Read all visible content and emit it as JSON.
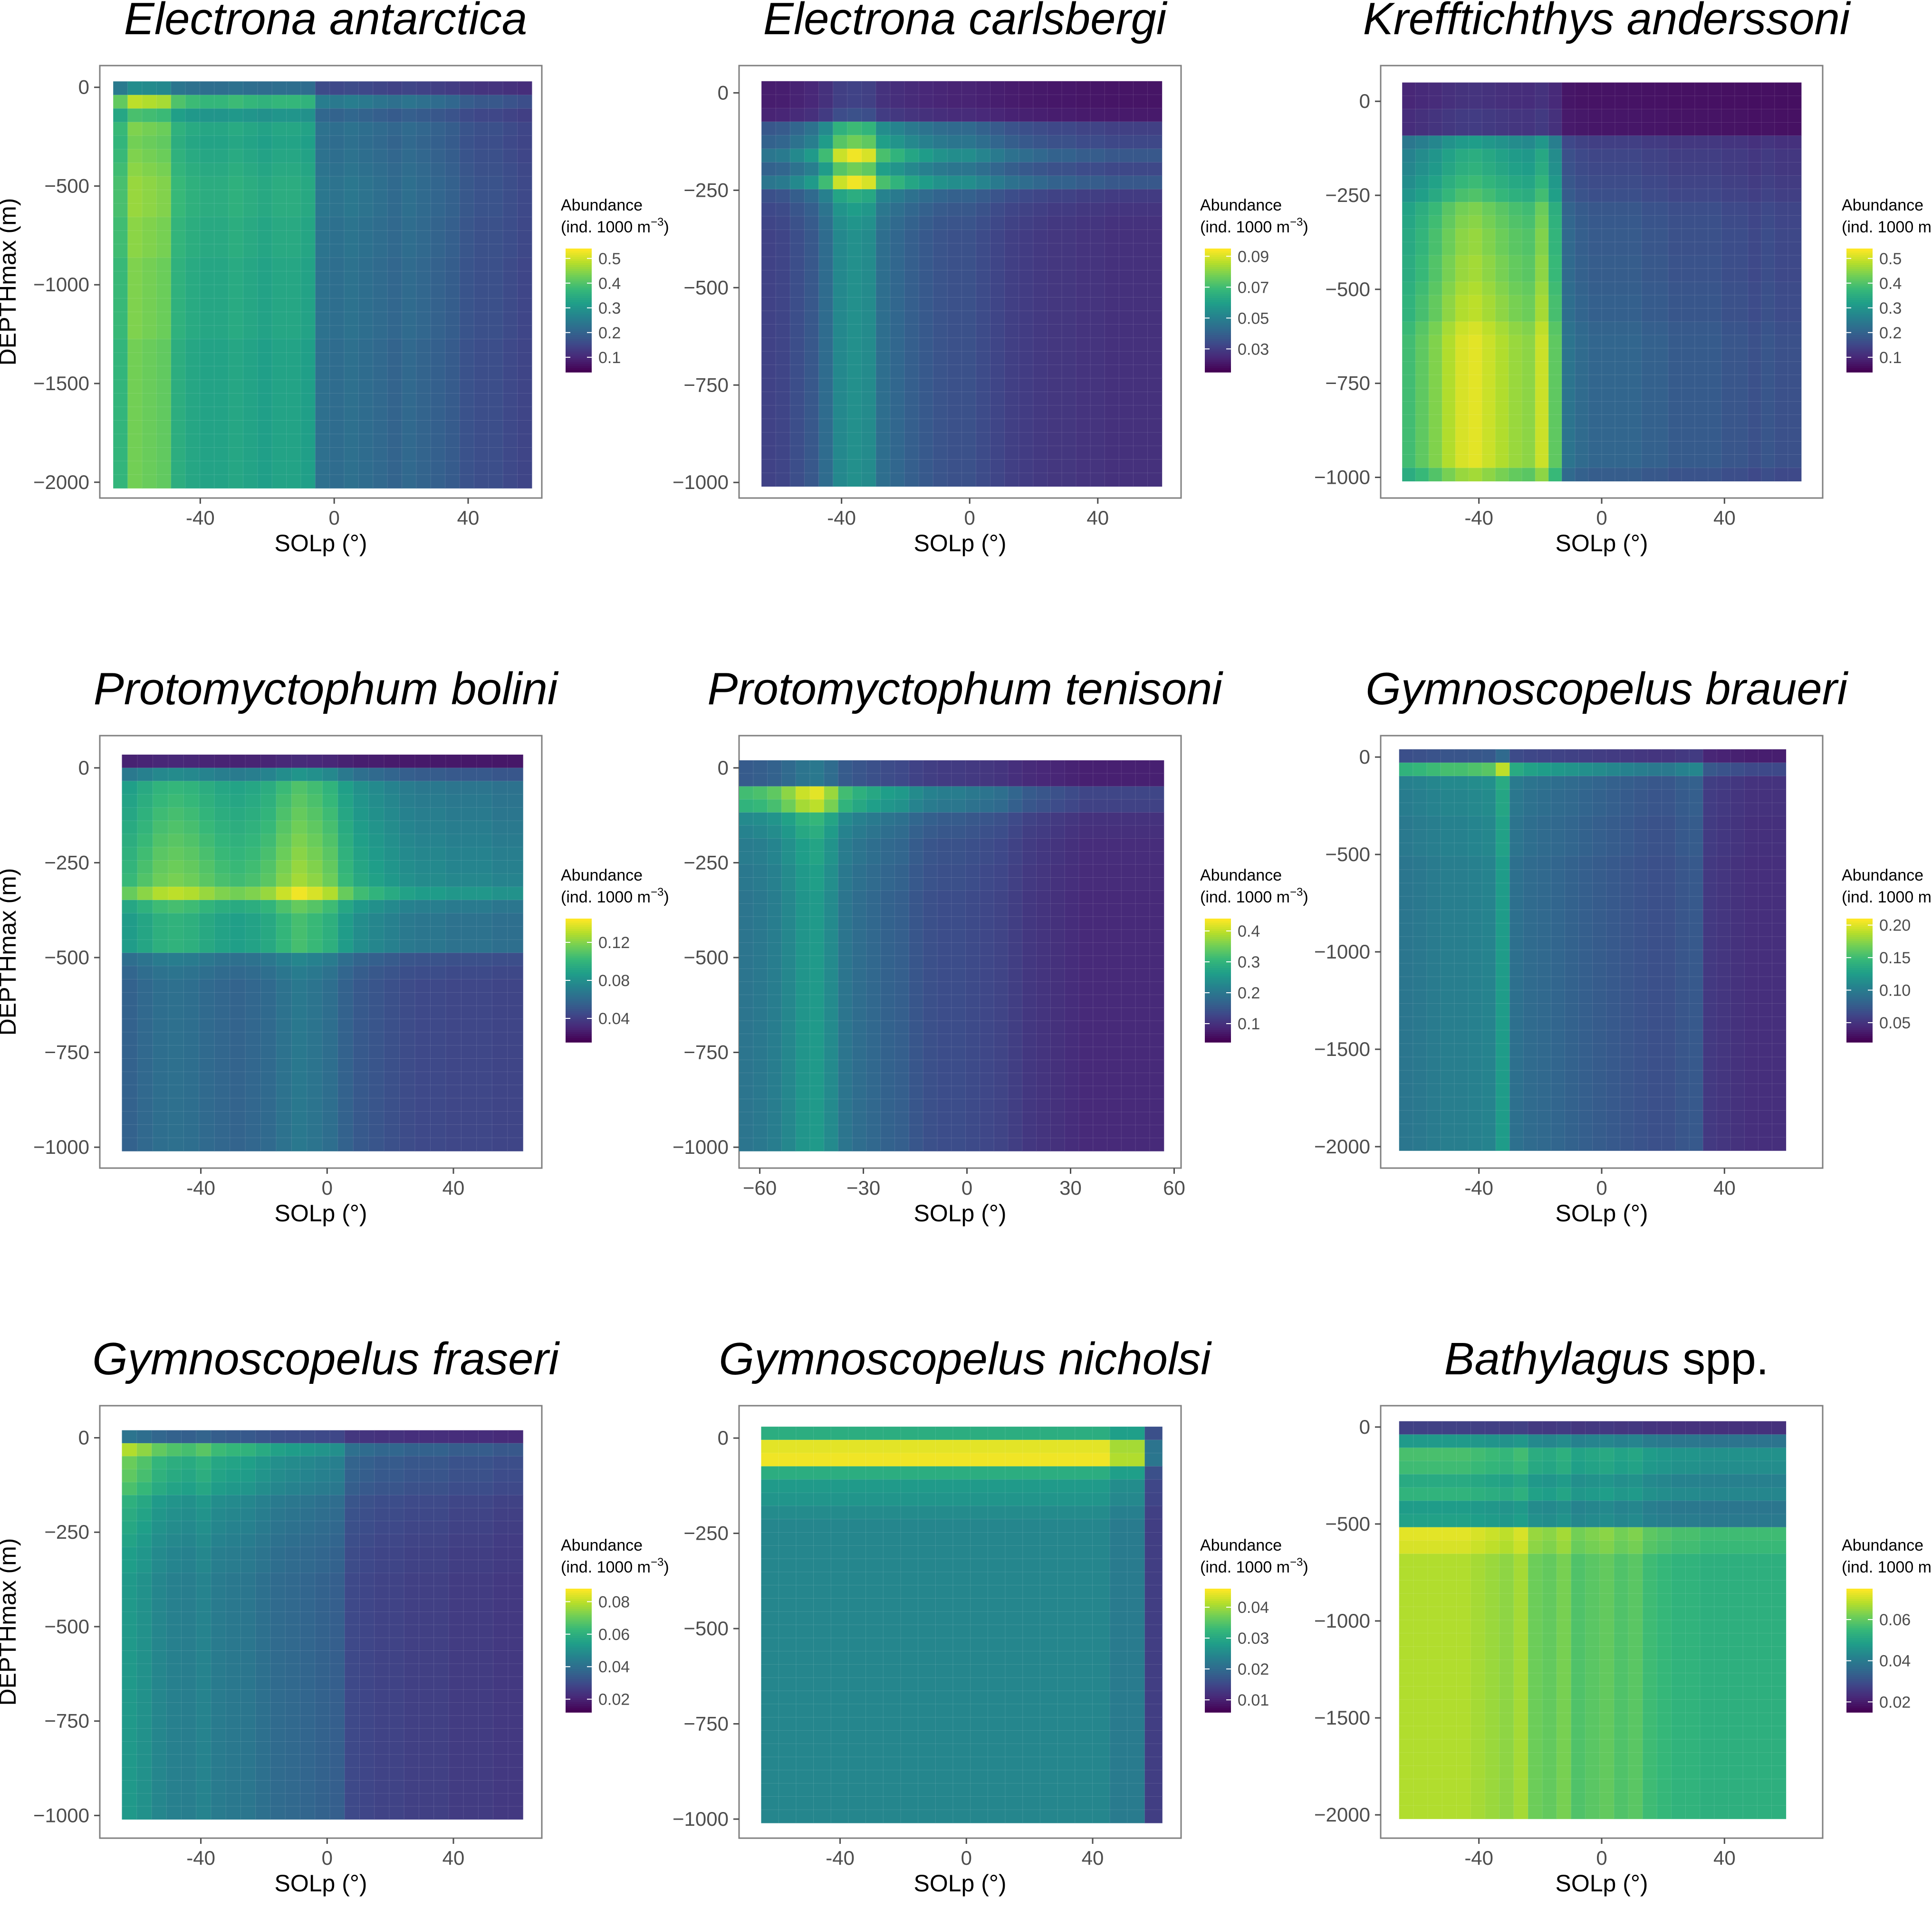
{
  "figure": {
    "background": "#ffffff",
    "panel_border": "#7f7f7f",
    "text_color": "#000000",
    "tick_color": "#4d4d4d"
  },
  "colormap": [
    "#440154",
    "#482878",
    "#3e4989",
    "#31688e",
    "#26828e",
    "#1f9e89",
    "#35b779",
    "#6ece58",
    "#b5de2b",
    "#fde725"
  ],
  "chart_data": [
    {
      "type": "heatmap",
      "title": "Electrona antarctica",
      "title_italic": "Electrona antarctica",
      "title_suffix": "",
      "xlabel": "SOLp (°)",
      "ylabel": "DEPTHmax (m)",
      "show_ylabel": true,
      "xlim": [
        -70,
        62
      ],
      "ylim": [
        -2080,
        110
      ],
      "xticks": [
        -40,
        0,
        40
      ],
      "xtick_labels": [
        "-40",
        "0",
        "40"
      ],
      "yticks": [
        0,
        -500,
        -1000,
        -1500,
        -2000
      ],
      "ytick_labels": [
        "0",
        "−500",
        "−1000",
        "−1500",
        "−2000"
      ],
      "grid_x_range": [
        -66,
        59
      ],
      "grid_y_range": [
        -2030,
        30
      ],
      "legend": {
        "title": "Abundance",
        "units_prefix": "(ind. 1000 m",
        "units_sup": "−3",
        "units_suffix": ")",
        "ticks": [
          0.1,
          0.2,
          0.3,
          0.4,
          0.5
        ],
        "tick_labels": [
          "0.1",
          "0.2",
          "0.3",
          "0.4",
          "0.5"
        ],
        "range": [
          0.04,
          0.54
        ]
      },
      "depth_profile": [
        0.5,
        0.92,
        0.72,
        0.82,
        0.8,
        0.82,
        0.84,
        0.86,
        0.86,
        0.86,
        0.84,
        0.84,
        0.84,
        0.82,
        0.82,
        0.82,
        0.82,
        0.82,
        0.82,
        0.8,
        0.8,
        0.8,
        0.8,
        0.8,
        0.8,
        0.8,
        0.8,
        0.8,
        0.8,
        0.8
      ],
      "lat_profile": [
        0.82,
        0.98,
        0.96,
        0.94,
        0.78,
        0.74,
        0.72,
        0.72,
        0.74,
        0.72,
        0.7,
        0.72,
        0.72,
        0.7,
        0.46,
        0.44,
        0.46,
        0.44,
        0.42,
        0.4,
        0.42,
        0.4,
        0.38,
        0.36,
        0.32,
        0.3,
        0.3,
        0.28,
        0.26
      ],
      "min_fraction": 0.0,
      "max_fraction": 1.0
    },
    {
      "type": "heatmap",
      "title": "Electrona carlsbergi",
      "title_italic": "Electrona carlsbergi",
      "title_suffix": "",
      "xlabel": "SOLp (°)",
      "ylabel": "DEPTHmax (m)",
      "show_ylabel": false,
      "xlim": [
        -72,
        66
      ],
      "ylim": [
        -1040,
        70
      ],
      "xticks": [
        -40,
        0,
        40
      ],
      "xtick_labels": [
        "-40",
        "0",
        "40"
      ],
      "yticks": [
        0,
        -250,
        -500,
        -750,
        -1000
      ],
      "ytick_labels": [
        "0",
        "−250",
        "−500",
        "−750",
        "−1000"
      ],
      "grid_x_range": [
        -65,
        60
      ],
      "grid_y_range": [
        -1010,
        30
      ],
      "legend": {
        "title": "Abundance",
        "units_prefix": "(ind. 1000 m",
        "units_sup": "−3",
        "units_suffix": ")",
        "ticks": [
          0.03,
          0.05,
          0.07,
          0.09
        ],
        "tick_labels": [
          "0.03",
          "0.05",
          "0.07",
          "0.09"
        ],
        "range": [
          0.015,
          0.095
        ]
      },
      "depth_profile": [
        0.2,
        0.2,
        0.25,
        0.68,
        0.78,
        0.98,
        0.78,
        0.98,
        0.62,
        0.55,
        0.52,
        0.5,
        0.5,
        0.5,
        0.5,
        0.5,
        0.5,
        0.5,
        0.5,
        0.5,
        0.5,
        0.5,
        0.5,
        0.5,
        0.5,
        0.5,
        0.5,
        0.5,
        0.5,
        0.5
      ],
      "lat_profile": [
        0.4,
        0.42,
        0.48,
        0.55,
        0.7,
        0.94,
        1.0,
        0.96,
        0.72,
        0.66,
        0.6,
        0.56,
        0.52,
        0.5,
        0.5,
        0.46,
        0.42,
        0.38,
        0.36,
        0.34,
        0.32,
        0.32,
        0.3,
        0.3,
        0.28,
        0.28,
        0.28,
        0.28
      ],
      "min_fraction": 0.0,
      "max_fraction": 1.0
    },
    {
      "type": "heatmap",
      "title": "Krefftichthys anderssoni",
      "title_italic": "Krefftichthys anderssoni",
      "title_suffix": "",
      "xlabel": "SOLp (°)",
      "ylabel": "DEPTHmax (m)",
      "show_ylabel": false,
      "xlim": [
        -72,
        72
      ],
      "ylim": [
        -1055,
        95
      ],
      "xticks": [
        -40,
        0,
        40
      ],
      "xtick_labels": [
        "-40",
        "0",
        "40"
      ],
      "yticks": [
        0,
        -250,
        -500,
        -750,
        -1000
      ],
      "ytick_labels": [
        "0",
        "−250",
        "−500",
        "−750",
        "−1000"
      ],
      "grid_x_range": [
        -65,
        65
      ],
      "grid_y_range": [
        -1010,
        50
      ],
      "legend": {
        "title": "Abundance",
        "units_prefix": "(ind. 1000 m",
        "units_sup": "−3",
        "units_suffix": ")",
        "ticks": [
          0.1,
          0.2,
          0.3,
          0.4,
          0.5
        ],
        "tick_labels": [
          "0.1",
          "0.2",
          "0.3",
          "0.4",
          "0.5"
        ],
        "range": [
          0.04,
          0.54
        ]
      },
      "depth_profile": [
        0.15,
        0.15,
        0.18,
        0.18,
        0.55,
        0.62,
        0.64,
        0.68,
        0.72,
        0.8,
        0.82,
        0.84,
        0.84,
        0.86,
        0.86,
        0.88,
        0.9,
        0.9,
        0.94,
        0.96,
        0.96,
        0.96,
        0.96,
        0.96,
        0.96,
        0.96,
        0.96,
        0.96,
        0.96,
        0.86
      ],
      "lat_profile": [
        0.72,
        0.78,
        0.84,
        0.92,
        0.98,
        1.0,
        0.96,
        0.92,
        0.88,
        0.86,
        0.96,
        0.78,
        0.4,
        0.36,
        0.34,
        0.34,
        0.34,
        0.34,
        0.32,
        0.32,
        0.3,
        0.3,
        0.3,
        0.3,
        0.28,
        0.28,
        0.26,
        0.28,
        0.26,
        0.26
      ],
      "min_fraction": 0.0,
      "max_fraction": 1.0
    },
    {
      "type": "heatmap",
      "title": "Protomyctophum bolini",
      "title_italic": "Protomyctophum bolini",
      "title_suffix": "",
      "xlabel": "SOLp (°)",
      "ylabel": "DEPTHmax (m)",
      "show_ylabel": true,
      "xlim": [
        -72,
        68
      ],
      "ylim": [
        -1055,
        85
      ],
      "xticks": [
        -40,
        0,
        40
      ],
      "xtick_labels": [
        "-40",
        "0",
        "40"
      ],
      "yticks": [
        0,
        -250,
        -500,
        -750,
        -1000
      ],
      "ytick_labels": [
        "0",
        "−250",
        "−500",
        "−750",
        "−1000"
      ],
      "grid_x_range": [
        -65,
        62
      ],
      "grid_y_range": [
        -1010,
        35
      ],
      "legend": {
        "title": "Abundance",
        "units_prefix": "(ind. 1000 m",
        "units_sup": "−3",
        "units_suffix": ")",
        "ticks": [
          0.04,
          0.08,
          0.12
        ],
        "tick_labels": [
          "0.04",
          "0.08",
          "0.12"
        ],
        "range": [
          0.015,
          0.145
        ]
      },
      "depth_profile": [
        0.12,
        0.52,
        0.72,
        0.74,
        0.76,
        0.78,
        0.8,
        0.82,
        0.84,
        0.86,
        0.98,
        0.76,
        0.7,
        0.7,
        0.7,
        0.46,
        0.42,
        0.4,
        0.4,
        0.4,
        0.4,
        0.4,
        0.4,
        0.4,
        0.4,
        0.4,
        0.4,
        0.4,
        0.4,
        0.4
      ],
      "lat_profile": [
        0.78,
        0.84,
        0.9,
        0.92,
        0.9,
        0.86,
        0.82,
        0.8,
        0.82,
        0.86,
        0.94,
        1.0,
        0.96,
        0.9,
        0.78,
        0.7,
        0.66,
        0.62,
        0.58,
        0.56,
        0.56,
        0.54,
        0.54,
        0.54,
        0.52,
        0.52
      ],
      "min_fraction": 0.0,
      "max_fraction": 1.0
    },
    {
      "type": "heatmap",
      "title": "Protomyctophum tenisoni",
      "title_italic": "Protomyctophum tenisoni",
      "title_suffix": "",
      "xlabel": "SOLp (°)",
      "ylabel": "DEPTHmax (m)",
      "show_ylabel": false,
      "xlim": [
        -66,
        62
      ],
      "ylim": [
        -1055,
        85
      ],
      "xticks": [
        -60,
        -30,
        0,
        30,
        60
      ],
      "xtick_labels": [
        "−60",
        "−30",
        "0",
        "30",
        "60"
      ],
      "yticks": [
        0,
        -250,
        -500,
        -750,
        -1000
      ],
      "ytick_labels": [
        "0",
        "−250",
        "−500",
        "−750",
        "−1000"
      ],
      "grid_x_range": [
        -66,
        57
      ],
      "grid_y_range": [
        -1010,
        20
      ],
      "legend": {
        "title": "Abundance",
        "units_prefix": "(ind. 1000 m",
        "units_sup": "−3",
        "units_suffix": ")",
        "ticks": [
          0.1,
          0.2,
          0.3,
          0.4
        ],
        "tick_labels": [
          "0.1",
          "0.2",
          "0.3",
          "0.4"
        ],
        "range": [
          0.04,
          0.44
        ]
      },
      "depth_profile": [
        0.4,
        0.4,
        0.96,
        0.9,
        0.66,
        0.62,
        0.58,
        0.58,
        0.56,
        0.56,
        0.54,
        0.54,
        0.54,
        0.54,
        0.54,
        0.54,
        0.54,
        0.54,
        0.54,
        0.54,
        0.54,
        0.54,
        0.54,
        0.54,
        0.54,
        0.54,
        0.54,
        0.54,
        0.54,
        0.54
      ],
      "lat_profile": [
        0.72,
        0.74,
        0.78,
        0.86,
        0.96,
        1.0,
        0.88,
        0.72,
        0.66,
        0.62,
        0.58,
        0.56,
        0.5,
        0.46,
        0.44,
        0.44,
        0.42,
        0.4,
        0.38,
        0.34,
        0.3,
        0.28,
        0.26,
        0.24,
        0.22,
        0.22,
        0.22,
        0.22,
        0.22,
        0.22
      ],
      "min_fraction": 0.0,
      "max_fraction": 1.0
    },
    {
      "type": "heatmap",
      "title": "Gymnoscopelus braueri",
      "title_italic": "Gymnoscopelus braueri",
      "title_suffix": "",
      "xlabel": "SOLp (°)",
      "ylabel": "DEPTHmax (m)",
      "show_ylabel": false,
      "xlim": [
        -72,
        72
      ],
      "ylim": [
        -2110,
        110
      ],
      "xticks": [
        -40,
        0,
        40
      ],
      "xtick_labels": [
        "-40",
        "0",
        "40"
      ],
      "yticks": [
        0,
        -500,
        -1000,
        -1500,
        -2000
      ],
      "ytick_labels": [
        "0",
        "−500",
        "−1000",
        "−1500",
        "−2000"
      ],
      "grid_x_range": [
        -66,
        60
      ],
      "grid_y_range": [
        -2020,
        40
      ],
      "legend": {
        "title": "Abundance",
        "units_prefix": "(ind. 1000 m",
        "units_sup": "−3",
        "units_suffix": ")",
        "ticks": [
          0.05,
          0.1,
          0.15,
          0.2
        ],
        "tick_labels": [
          "0.05",
          "0.10",
          "0.15",
          "0.20"
        ],
        "range": [
          0.02,
          0.21
        ]
      },
      "depth_profile": [
        0.35,
        0.92,
        0.62,
        0.6,
        0.6,
        0.58,
        0.58,
        0.58,
        0.56,
        0.56,
        0.56,
        0.56,
        0.56,
        0.56,
        0.56,
        0.56,
        0.56,
        0.56,
        0.56,
        0.56,
        0.56,
        0.56,
        0.56,
        0.56,
        0.56,
        0.56,
        0.56,
        0.56,
        0.56,
        0.56
      ],
      "lat_profile": [
        0.7,
        0.72,
        0.74,
        0.76,
        0.76,
        0.78,
        0.8,
        0.98,
        0.66,
        0.62,
        0.6,
        0.58,
        0.56,
        0.54,
        0.52,
        0.5,
        0.48,
        0.46,
        0.44,
        0.44,
        0.48,
        0.5,
        0.3,
        0.28,
        0.26,
        0.24,
        0.24,
        0.24
      ],
      "min_fraction": 0.0,
      "max_fraction": 1.0
    },
    {
      "type": "heatmap",
      "title": "Gymnoscopelus fraseri",
      "title_italic": "Gymnoscopelus fraseri",
      "title_suffix": "",
      "xlabel": "SOLp (°)",
      "ylabel": "DEPTHmax (m)",
      "show_ylabel": true,
      "xlim": [
        -72,
        68
      ],
      "ylim": [
        -1060,
        85
      ],
      "xticks": [
        -40,
        0,
        40
      ],
      "xtick_labels": [
        "-40",
        "0",
        "40"
      ],
      "yticks": [
        0,
        -250,
        -500,
        -750,
        -1000
      ],
      "ytick_labels": [
        "0",
        "−250",
        "−500",
        "−750",
        "−1000"
      ],
      "grid_x_range": [
        -65,
        62
      ],
      "grid_y_range": [
        -1010,
        20
      ],
      "legend": {
        "title": "Abundance",
        "units_prefix": "(ind. 1000 m",
        "units_sup": "−3",
        "units_suffix": ")",
        "ticks": [
          0.02,
          0.04,
          0.06,
          0.08
        ],
        "tick_labels": [
          "0.02",
          "0.04",
          "0.06",
          "0.08"
        ],
        "range": [
          0.012,
          0.088
        ]
      },
      "depth_profile": [
        0.4,
        0.92,
        0.8,
        0.78,
        0.74,
        0.66,
        0.64,
        0.62,
        0.6,
        0.58,
        0.58,
        0.56,
        0.56,
        0.56,
        0.56,
        0.56,
        0.56,
        0.56,
        0.56,
        0.56,
        0.56,
        0.56,
        0.56,
        0.56,
        0.56,
        0.56,
        0.56,
        0.56,
        0.56,
        0.56
      ],
      "lat_profile": [
        0.96,
        0.9,
        0.82,
        0.78,
        0.76,
        0.8,
        0.74,
        0.72,
        0.7,
        0.66,
        0.62,
        0.6,
        0.58,
        0.56,
        0.54,
        0.4,
        0.38,
        0.36,
        0.36,
        0.34,
        0.34,
        0.34,
        0.32,
        0.32,
        0.32,
        0.3,
        0.3
      ],
      "min_fraction": 0.0,
      "max_fraction": 1.0
    },
    {
      "type": "heatmap",
      "title": "Gymnoscopelus nicholsi",
      "title_italic": "Gymnoscopelus nicholsi",
      "title_suffix": "",
      "xlabel": "SOLp (°)",
      "ylabel": "DEPTHmax (m)",
      "show_ylabel": false,
      "xlim": [
        -72,
        68
      ],
      "ylim": [
        -1050,
        85
      ],
      "xticks": [
        -40,
        0,
        40
      ],
      "xtick_labels": [
        "-40",
        "0",
        "40"
      ],
      "yticks": [
        0,
        -250,
        -500,
        -750,
        -1000
      ],
      "ytick_labels": [
        "0",
        "−250",
        "−500",
        "−750",
        "−1000"
      ],
      "grid_x_range": [
        -65,
        62
      ],
      "grid_y_range": [
        -1010,
        30
      ],
      "legend": {
        "title": "Abundance",
        "units_prefix": "(ind. 1000 m",
        "units_sup": "−3",
        "units_suffix": ")",
        "ticks": [
          0.01,
          0.02,
          0.03,
          0.04
        ],
        "tick_labels": [
          "0.01",
          "0.02",
          "0.03",
          "0.04"
        ],
        "range": [
          0.006,
          0.046
        ]
      },
      "depth_profile": [
        0.62,
        0.96,
        0.98,
        0.62,
        0.54,
        0.52,
        0.48,
        0.46,
        0.46,
        0.46,
        0.46,
        0.46,
        0.46,
        0.46,
        0.46,
        0.46,
        0.46,
        0.46,
        0.46,
        0.46,
        0.46,
        0.46,
        0.46,
        0.46,
        0.46,
        0.46,
        0.46,
        0.46,
        0.46,
        0.46
      ],
      "lat_profile": [
        1.0,
        1.0,
        1.0,
        1.0,
        1.0,
        1.0,
        1.0,
        1.0,
        1.0,
        1.0,
        1.0,
        1.0,
        1.0,
        1.0,
        1.0,
        1.0,
        1.0,
        1.0,
        1.0,
        1.0,
        0.9,
        0.9,
        0.4
      ],
      "min_fraction": 0.0,
      "max_fraction": 1.0
    },
    {
      "type": "heatmap",
      "title": "Bathylagus spp.",
      "title_italic": "Bathylagus",
      "title_suffix": " spp.",
      "xlabel": "SOLp (°)",
      "ylabel": "DEPTHmax (m)",
      "show_ylabel": false,
      "xlim": [
        -72,
        72
      ],
      "ylim": [
        -2120,
        110
      ],
      "xticks": [
        -40,
        0,
        40
      ],
      "xtick_labels": [
        "-40",
        "0",
        "40"
      ],
      "yticks": [
        0,
        -500,
        -1000,
        -1500,
        -2000
      ],
      "ytick_labels": [
        "0",
        "−500",
        "−1000",
        "−1500",
        "−2000"
      ],
      "grid_x_range": [
        -66,
        60
      ],
      "grid_y_range": [
        -2020,
        30
      ],
      "legend": {
        "title": "Abundance",
        "units_prefix": "(ind. 1000 m",
        "units_sup": "−3",
        "units_suffix": ")",
        "ticks": [
          0.02,
          0.04,
          0.06
        ],
        "tick_labels": [
          "0.02",
          "0.04",
          "0.06"
        ],
        "range": [
          0.015,
          0.075
        ]
      },
      "depth_profile": [
        0.2,
        0.55,
        0.72,
        0.7,
        0.62,
        0.66,
        0.56,
        0.58,
        0.98,
        0.96,
        0.9,
        0.9,
        0.9,
        0.9,
        0.9,
        0.9,
        0.9,
        0.9,
        0.9,
        0.9,
        0.9,
        0.9,
        0.9,
        0.9,
        0.9,
        0.9,
        0.9,
        0.9,
        0.9,
        0.9
      ],
      "lat_profile": [
        0.98,
        0.98,
        0.98,
        0.98,
        0.98,
        0.96,
        0.94,
        0.92,
        0.96,
        0.86,
        0.84,
        0.88,
        0.8,
        0.82,
        0.84,
        0.8,
        0.82,
        0.76,
        0.74,
        0.72,
        0.72,
        0.7,
        0.7,
        0.7,
        0.7,
        0.7,
        0.7
      ],
      "min_fraction": 0.0,
      "max_fraction": 1.0
    }
  ]
}
